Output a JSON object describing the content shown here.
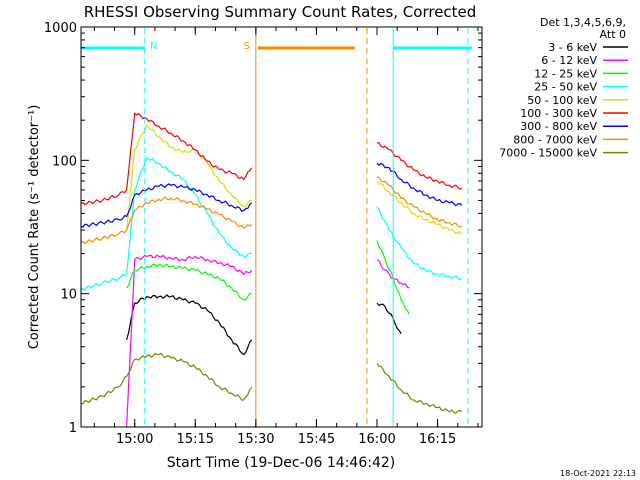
{
  "chart_data": {
    "type": "line",
    "title": "RHESSI Observing Summary Count Rates, Corrected",
    "xlabel": "Start Time (19-Dec-06 14:46:42)",
    "ylabel": "Corrected Count Rate (s⁻¹ detector⁻¹)",
    "yscale": "log",
    "ylim": [
      1,
      1000
    ],
    "xlim": [
      "14:46:42",
      "16:26:00"
    ],
    "x_ticks": [
      "15:00",
      "15:15",
      "15:30",
      "15:45",
      "16:00",
      "16:15"
    ],
    "y_ticks": [
      "1",
      "10",
      "100",
      "1000"
    ],
    "legend_header": [
      "Det 1,3,4,5,6,9,",
      "Att 0"
    ],
    "legend_position": "right",
    "timestamp": "18-Oct-2021 22:13",
    "series": [
      {
        "name": "3 - 6 keV",
        "color": "#000000",
        "x": [
          "14:58",
          "15:00",
          "15:03",
          "15:06",
          "15:09",
          "15:12",
          "15:15",
          "15:18",
          "15:21",
          "15:24",
          "15:27",
          "15:29",
          "16:00",
          "16:02",
          "16:04",
          "16:05",
          "16:06"
        ],
        "values": [
          4.5,
          8.5,
          9.5,
          9.5,
          9.5,
          9.0,
          8.5,
          7.5,
          6.0,
          4.5,
          3.5,
          4.5,
          8.5,
          8.0,
          6.5,
          5.5,
          5.0
        ]
      },
      {
        "name": "6 - 12 keV",
        "color": "#ff00ff",
        "x": [
          "14:58",
          "15:00",
          "15:03",
          "15:06",
          "15:09",
          "15:12",
          "15:15",
          "15:18",
          "15:21",
          "15:24",
          "15:27",
          "15:29",
          "16:00",
          "16:02",
          "16:04",
          "16:06",
          "16:08"
        ],
        "values": [
          1.0,
          18,
          19,
          19,
          18.5,
          18,
          19,
          18,
          17,
          16,
          14,
          15,
          18,
          15,
          13,
          12,
          11
        ]
      },
      {
        "name": "12 - 25 keV",
        "color": "#00ff00",
        "x": [
          "14:58",
          "15:00",
          "15:03",
          "15:06",
          "15:09",
          "15:12",
          "15:15",
          "15:18",
          "15:21",
          "15:24",
          "15:27",
          "15:29",
          "16:00",
          "16:02",
          "16:04",
          "16:06",
          "16:08"
        ],
        "values": [
          11,
          15,
          16,
          16.5,
          16,
          15.5,
          15,
          14,
          13,
          11,
          9,
          10,
          25,
          18,
          13,
          9,
          7
        ]
      },
      {
        "name": "25 - 50 keV",
        "color": "#00ffff",
        "x": [
          "14:46:42",
          "14:48",
          "14:52",
          "14:56",
          "14:58",
          "15:00",
          "15:03",
          "15:06",
          "15:09",
          "15:12",
          "15:15",
          "15:18",
          "15:21",
          "15:24",
          "15:27",
          "15:29",
          "16:00",
          "16:03",
          "16:06",
          "16:09",
          "16:12",
          "16:15",
          "16:18",
          "16:21"
        ],
        "values": [
          10.5,
          11,
          12,
          13,
          14,
          60,
          105,
          95,
          82,
          72,
          55,
          40,
          28,
          22,
          19,
          20,
          45,
          30,
          22,
          17,
          15,
          14,
          13.5,
          13
        ]
      },
      {
        "name": "50 - 100 keV",
        "color": "#dddd00",
        "x": [
          "14:58",
          "15:00",
          "15:03",
          "15:06",
          "15:09",
          "15:12",
          "15:15",
          "15:18",
          "15:21",
          "15:24",
          "15:27",
          "15:29",
          "16:00",
          "16:03",
          "16:06",
          "16:09",
          "16:12",
          "16:15",
          "16:18",
          "16:21"
        ],
        "values": [
          30,
          120,
          185,
          150,
          125,
          115,
          120,
          95,
          70,
          55,
          45,
          50,
          70,
          58,
          48,
          40,
          36,
          33,
          30,
          28
        ]
      },
      {
        "name": "100 - 300 keV",
        "color": "#ff0000",
        "x": [
          "14:46:42",
          "14:52",
          "14:56",
          "14:58",
          "15:00",
          "15:03",
          "15:06",
          "15:09",
          "15:12",
          "15:15",
          "15:18",
          "15:21",
          "15:24",
          "15:27",
          "15:29",
          "16:00",
          "16:03",
          "16:06",
          "16:09",
          "16:12",
          "16:15",
          "16:18",
          "16:21"
        ],
        "values": [
          47,
          50,
          55,
          60,
          225,
          205,
          180,
          160,
          140,
          120,
          98,
          85,
          80,
          72,
          88,
          135,
          120,
          100,
          85,
          75,
          70,
          65,
          62
        ]
      },
      {
        "name": "300 - 800 keV",
        "color": "#0000ff",
        "x": [
          "14:46:42",
          "14:52",
          "14:56",
          "14:58",
          "15:00",
          "15:03",
          "15:06",
          "15:09",
          "15:12",
          "15:15",
          "15:18",
          "15:21",
          "15:24",
          "15:27",
          "15:29",
          "16:00",
          "16:03",
          "16:06",
          "16:09",
          "16:12",
          "16:15",
          "16:18",
          "16:21"
        ],
        "values": [
          32,
          34,
          36,
          38,
          55,
          60,
          64,
          65,
          63,
          60,
          55,
          50,
          46,
          42,
          48,
          95,
          88,
          72,
          62,
          55,
          50,
          48,
          46
        ]
      },
      {
        "name": "800 - 7000 keV",
        "color": "#ff8800",
        "x": [
          "14:46:42",
          "14:52",
          "14:56",
          "14:58",
          "15:00",
          "15:03",
          "15:06",
          "15:09",
          "15:12",
          "15:15",
          "15:18",
          "15:21",
          "15:24",
          "15:27",
          "15:29",
          "16:00",
          "16:03",
          "16:06",
          "16:09",
          "16:12",
          "16:15",
          "16:18",
          "16:21"
        ],
        "values": [
          24,
          26,
          28,
          30,
          42,
          48,
          51,
          52,
          50,
          47,
          43,
          39,
          35,
          31,
          33,
          75,
          65,
          52,
          45,
          40,
          36,
          34,
          32
        ]
      },
      {
        "name": "7000 - 15000 keV",
        "color": "#808000",
        "x": [
          "14:46:42",
          "14:52",
          "14:56",
          "14:58",
          "15:00",
          "15:03",
          "15:06",
          "15:09",
          "15:12",
          "15:15",
          "15:18",
          "15:21",
          "15:24",
          "15:27",
          "15:29",
          "16:00",
          "16:03",
          "16:06",
          "16:09",
          "16:12",
          "16:15",
          "16:18",
          "16:21"
        ],
        "values": [
          1.5,
          1.7,
          2.0,
          2.4,
          3.2,
          3.4,
          3.5,
          3.3,
          3.1,
          2.8,
          2.4,
          2.0,
          1.8,
          1.6,
          2.0,
          3.0,
          2.4,
          1.9,
          1.6,
          1.5,
          1.4,
          1.3,
          1.3
        ]
      }
    ],
    "annotations": [
      {
        "label": "N",
        "color": "#00ffff",
        "bar_from": "14:46:42",
        "bar_to": "15:02:30",
        "lines": [
          "14:46:42",
          "15:02:30"
        ]
      },
      {
        "label": "S",
        "color": "#ff8800",
        "bar_from": "15:30:30",
        "bar_to": "15:54:30",
        "lines": [
          "15:30:00",
          "15:57:30"
        ]
      },
      {
        "label": "",
        "color": "#00ffff",
        "bar_from": "16:04:00",
        "bar_to": "16:23:30",
        "lines": [
          "16:04:00",
          "16:22:30"
        ]
      }
    ]
  }
}
